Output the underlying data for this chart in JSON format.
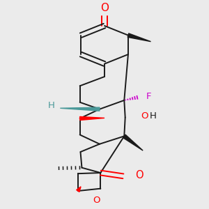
{
  "background_color": "#ebebeb",
  "bond_color": "#1a1a1a",
  "oxygen_color": "#ff0000",
  "fluorine_color": "#cc00cc",
  "hydrogen_color": "#4a9999",
  "figsize": [
    3.0,
    3.0
  ],
  "dpi": 100,
  "xlim": [
    0.0,
    1.0
  ],
  "ylim": [
    0.0,
    1.0
  ]
}
